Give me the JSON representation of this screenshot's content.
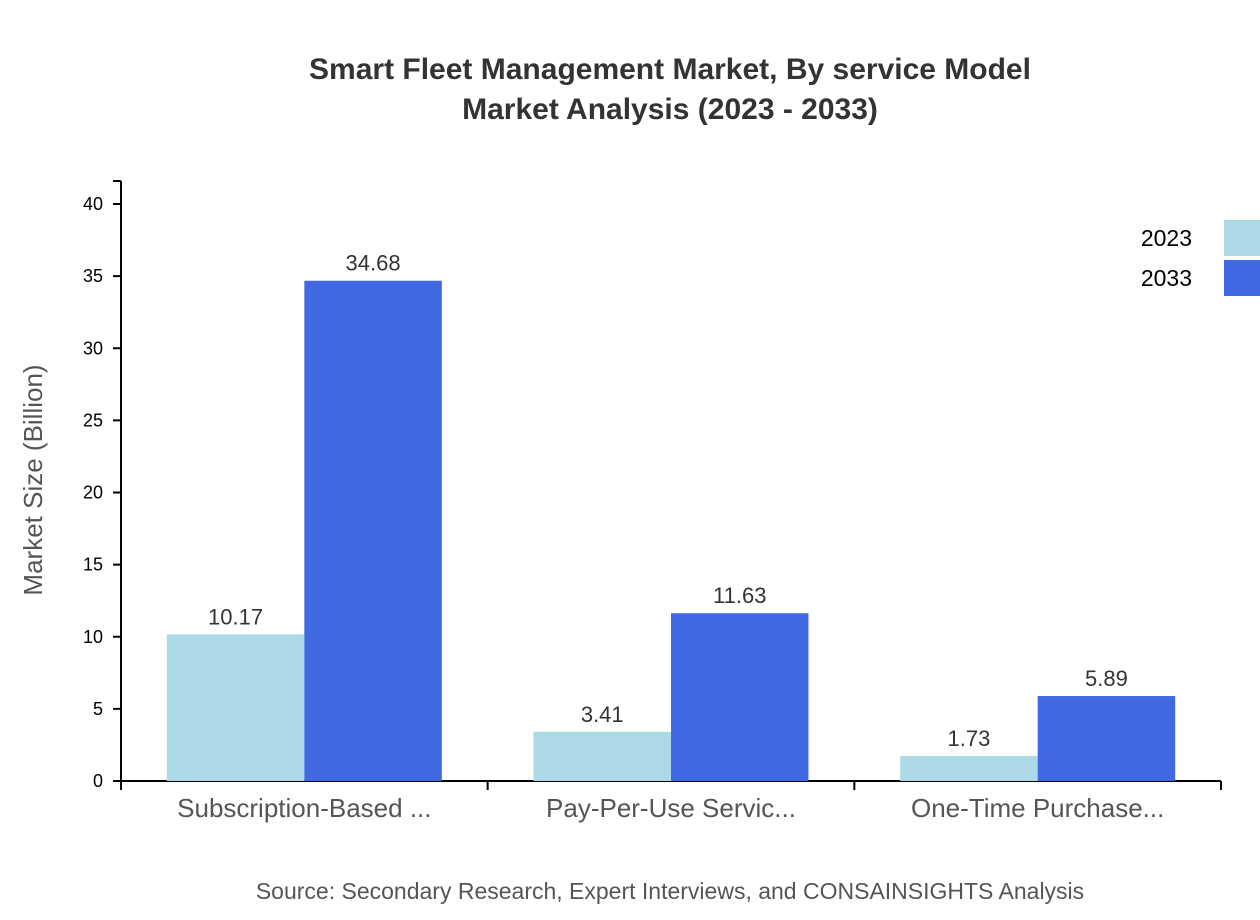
{
  "chart_data": {
    "type": "bar",
    "title": "Smart Fleet Management Market, By service Model",
    "subtitle": "Market Analysis (2023 - 2033)",
    "categories": [
      "Subscription-Based ...",
      "Pay-Per-Use Servic...",
      "One-Time Purchase..."
    ],
    "series": [
      {
        "name": "2023",
        "color": "#add8e6",
        "values": [
          10.17,
          3.41,
          1.73
        ]
      },
      {
        "name": "2033",
        "color": "#4169e1",
        "values": [
          34.68,
          11.63,
          5.89
        ]
      }
    ],
    "ylabel": "Market Size (Billion)",
    "xlabel": "",
    "ylim": [
      0,
      41.5
    ],
    "yticks": [
      0,
      5,
      10,
      15,
      20,
      25,
      30,
      35,
      40
    ],
    "grid": false,
    "legend": "top-right"
  },
  "source": "Source: Secondary Research, Expert Interviews, and CONSAINSIGHTS Analysis"
}
